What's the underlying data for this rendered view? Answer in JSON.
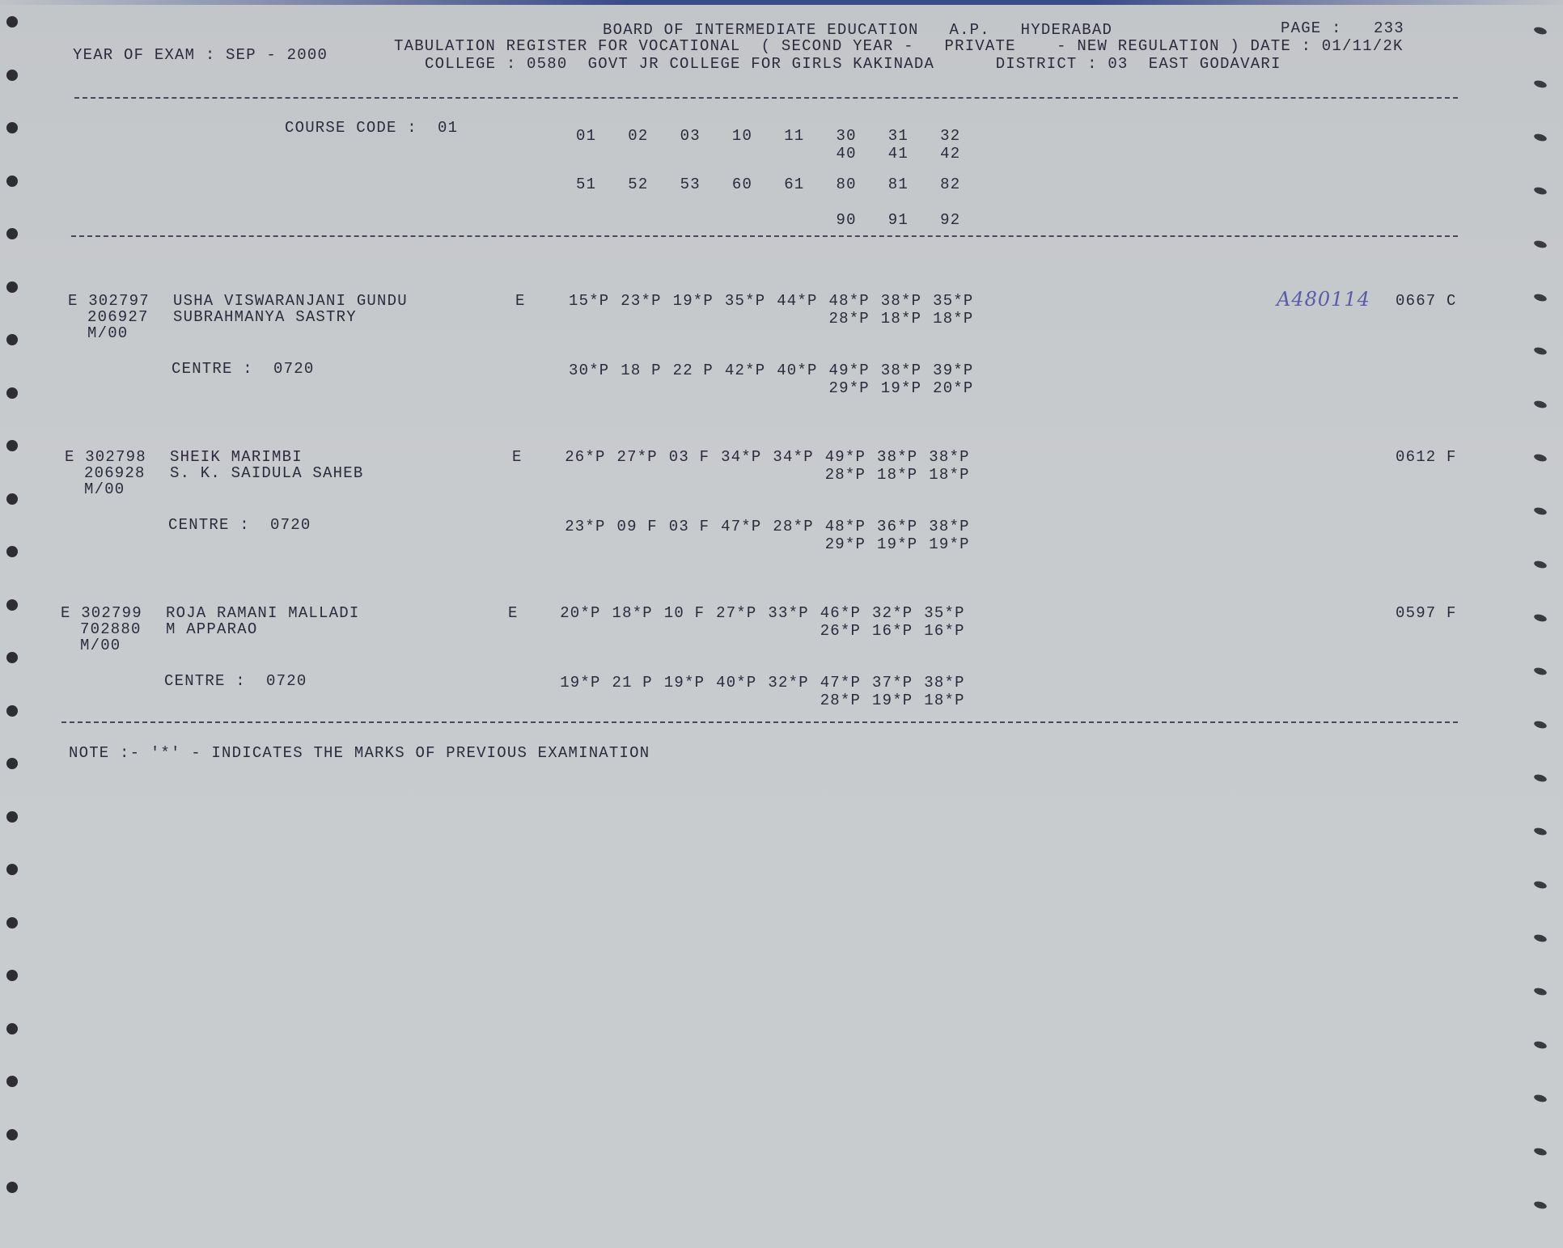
{
  "header": {
    "line1": "BOARD OF INTERMEDIATE EDUCATION   A.P.   HYDERABAD",
    "line2": "TABULATION REGISTER FOR VOCATIONAL  ( SECOND YEAR -   PRIVATE    - NEW REGULATION ) DATE : 01/11/2K",
    "line3": "COLLEGE : 0580  GOVT JR COLLEGE FOR GIRLS KAKINADA      DISTRICT : 03  EAST GODAVARI",
    "year_of_exam": "YEAR OF EXAM : SEP - 2000",
    "page_label": "PAGE :",
    "page_number": "233"
  },
  "course": {
    "label": "COURSE CODE :  01",
    "codes_row1": [
      "01",
      "02",
      "03",
      "10",
      "11",
      "30",
      "31",
      "32"
    ],
    "codes_row1_sub": [
      "40",
      "41",
      "42"
    ],
    "codes_row2": [
      "51",
      "52",
      "53",
      "60",
      "61",
      "80",
      "81",
      "82"
    ],
    "codes_row2_sub": [
      "90",
      "91",
      "92"
    ]
  },
  "students": [
    {
      "hall_ticket": "E 302797",
      "roll": "206927",
      "category": "M/00",
      "name": "USHA VISWARANJANI GUNDU",
      "father": "SUBRAHMANYA SASTRY",
      "medium": "E",
      "centre": "CENTRE :  0720",
      "marks_row1": [
        "15*P",
        "23*P",
        "19*P",
        "35*P",
        "44*P",
        "48*P",
        "38*P",
        "35*P"
      ],
      "marks_row1_sub": [
        "28*P",
        "18*P",
        "18*P"
      ],
      "marks_row2": [
        "30*P",
        "18 P",
        "22 P",
        "42*P",
        "40*P",
        "49*P",
        "38*P",
        "39*P"
      ],
      "marks_row2_sub": [
        "29*P",
        "19*P",
        "20*P"
      ],
      "handwritten": "A480114",
      "total": "0667 C"
    },
    {
      "hall_ticket": "E 302798",
      "roll": "206928",
      "category": "M/00",
      "name": "SHEIK MARIMBI",
      "father": "S. K. SAIDULA SAHEB",
      "medium": "E",
      "centre": "CENTRE :  0720",
      "marks_row1": [
        "26*P",
        "27*P",
        "03 F",
        "34*P",
        "34*P",
        "49*P",
        "38*P",
        "38*P"
      ],
      "marks_row1_sub": [
        "28*P",
        "18*P",
        "18*P"
      ],
      "marks_row2": [
        "23*P",
        "09 F",
        "03 F",
        "47*P",
        "28*P",
        "48*P",
        "36*P",
        "38*P"
      ],
      "marks_row2_sub": [
        "29*P",
        "19*P",
        "19*P"
      ],
      "total": "0612 F"
    },
    {
      "hall_ticket": "E 302799",
      "roll": "702880",
      "category": "M/00",
      "name": "ROJA RAMANI MALLADI",
      "father": "M APPARAO",
      "medium": "E",
      "centre": "CENTRE :  0720",
      "marks_row1": [
        "20*P",
        "18*P",
        "10 F",
        "27*P",
        "33*P",
        "46*P",
        "32*P",
        "35*P"
      ],
      "marks_row1_sub": [
        "26*P",
        "16*P",
        "16*P"
      ],
      "marks_row2": [
        "19*P",
        "21 P",
        "19*P",
        "40*P",
        "32*P",
        "47*P",
        "37*P",
        "38*P"
      ],
      "marks_row2_sub": [
        "28*P",
        "19*P",
        "18*P"
      ],
      "total": "0597 F"
    }
  ],
  "note": "NOTE :- '*' - INDICATES THE MARKS OF PREVIOUS EXAMINATION",
  "colors": {
    "paper": "#c6c9cc",
    "ink": "#2c2a3c",
    "handwriting": "#5a5aa8"
  }
}
